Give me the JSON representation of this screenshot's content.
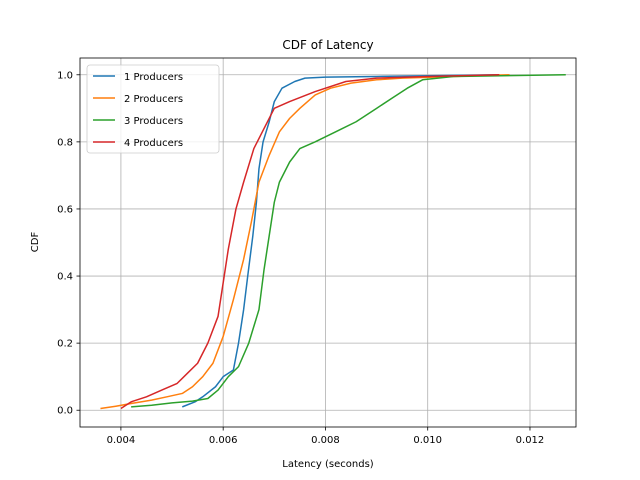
{
  "chart_data": {
    "type": "line",
    "title": "CDF of Latency",
    "xlabel": "Latency (seconds)",
    "ylabel": "CDF",
    "xlim": [
      0.0032,
      0.0129
    ],
    "ylim": [
      -0.05,
      1.05
    ],
    "xticks": [
      0.004,
      0.006,
      0.008,
      0.01,
      0.012
    ],
    "xtick_labels": [
      "0.004",
      "0.006",
      "0.008",
      "0.010",
      "0.012"
    ],
    "yticks": [
      0.0,
      0.2,
      0.4,
      0.6,
      0.8,
      1.0
    ],
    "ytick_labels": [
      "0.0",
      "0.2",
      "0.4",
      "0.6",
      "0.8",
      "1.0"
    ],
    "grid": true,
    "legend_position": "top-left",
    "series": [
      {
        "name": "1 Producers",
        "color": "#1f77b4",
        "points": [
          [
            0.0052,
            0.01
          ],
          [
            0.00545,
            0.025
          ],
          [
            0.0056,
            0.04
          ],
          [
            0.00585,
            0.07
          ],
          [
            0.006,
            0.1
          ],
          [
            0.0062,
            0.12
          ],
          [
            0.0063,
            0.2
          ],
          [
            0.0064,
            0.3
          ],
          [
            0.00648,
            0.4
          ],
          [
            0.00658,
            0.52
          ],
          [
            0.00665,
            0.62
          ],
          [
            0.0067,
            0.72
          ],
          [
            0.00678,
            0.8
          ],
          [
            0.0069,
            0.86
          ],
          [
            0.007,
            0.92
          ],
          [
            0.00715,
            0.96
          ],
          [
            0.0074,
            0.98
          ],
          [
            0.0076,
            0.99
          ],
          [
            0.008,
            0.993
          ],
          [
            0.009,
            0.995
          ],
          [
            0.01,
            0.997
          ],
          [
            0.0114,
            1.0
          ]
        ]
      },
      {
        "name": "2 Producers",
        "color": "#ff7f0e",
        "points": [
          [
            0.0036,
            0.005
          ],
          [
            0.0039,
            0.012
          ],
          [
            0.0042,
            0.02
          ],
          [
            0.0046,
            0.03
          ],
          [
            0.0049,
            0.04
          ],
          [
            0.0052,
            0.05
          ],
          [
            0.0054,
            0.07
          ],
          [
            0.0056,
            0.1
          ],
          [
            0.0058,
            0.14
          ],
          [
            0.006,
            0.22
          ],
          [
            0.0062,
            0.33
          ],
          [
            0.0064,
            0.45
          ],
          [
            0.00655,
            0.56
          ],
          [
            0.0067,
            0.68
          ],
          [
            0.0069,
            0.76
          ],
          [
            0.0071,
            0.83
          ],
          [
            0.0073,
            0.87
          ],
          [
            0.0075,
            0.9
          ],
          [
            0.0078,
            0.94
          ],
          [
            0.0081,
            0.96
          ],
          [
            0.0085,
            0.975
          ],
          [
            0.009,
            0.985
          ],
          [
            0.0095,
            0.99
          ],
          [
            0.0105,
            0.995
          ],
          [
            0.0116,
            1.0
          ]
        ]
      },
      {
        "name": "3 Producers",
        "color": "#2ca02c",
        "points": [
          [
            0.0042,
            0.01
          ],
          [
            0.0046,
            0.015
          ],
          [
            0.005,
            0.022
          ],
          [
            0.0054,
            0.027
          ],
          [
            0.0057,
            0.035
          ],
          [
            0.0059,
            0.06
          ],
          [
            0.0061,
            0.1
          ],
          [
            0.0063,
            0.13
          ],
          [
            0.0065,
            0.2
          ],
          [
            0.0067,
            0.3
          ],
          [
            0.0068,
            0.42
          ],
          [
            0.0069,
            0.52
          ],
          [
            0.007,
            0.62
          ],
          [
            0.0071,
            0.68
          ],
          [
            0.0073,
            0.74
          ],
          [
            0.0075,
            0.78
          ],
          [
            0.0078,
            0.8
          ],
          [
            0.0082,
            0.83
          ],
          [
            0.0086,
            0.86
          ],
          [
            0.009,
            0.9
          ],
          [
            0.0093,
            0.93
          ],
          [
            0.0096,
            0.96
          ],
          [
            0.0099,
            0.985
          ],
          [
            0.0105,
            0.995
          ],
          [
            0.0127,
            1.0
          ]
        ]
      },
      {
        "name": "4 Producers",
        "color": "#d62728",
        "points": [
          [
            0.004,
            0.005
          ],
          [
            0.0042,
            0.025
          ],
          [
            0.0045,
            0.04
          ],
          [
            0.0048,
            0.06
          ],
          [
            0.0051,
            0.08
          ],
          [
            0.0053,
            0.11
          ],
          [
            0.0055,
            0.14
          ],
          [
            0.0057,
            0.2
          ],
          [
            0.0059,
            0.28
          ],
          [
            0.006,
            0.38
          ],
          [
            0.0061,
            0.48
          ],
          [
            0.00625,
            0.6
          ],
          [
            0.0064,
            0.68
          ],
          [
            0.0066,
            0.78
          ],
          [
            0.0068,
            0.84
          ],
          [
            0.007,
            0.9
          ],
          [
            0.0073,
            0.92
          ],
          [
            0.0078,
            0.95
          ],
          [
            0.0084,
            0.98
          ],
          [
            0.009,
            0.99
          ],
          [
            0.01,
            0.995
          ],
          [
            0.0114,
            1.0
          ]
        ]
      }
    ]
  }
}
